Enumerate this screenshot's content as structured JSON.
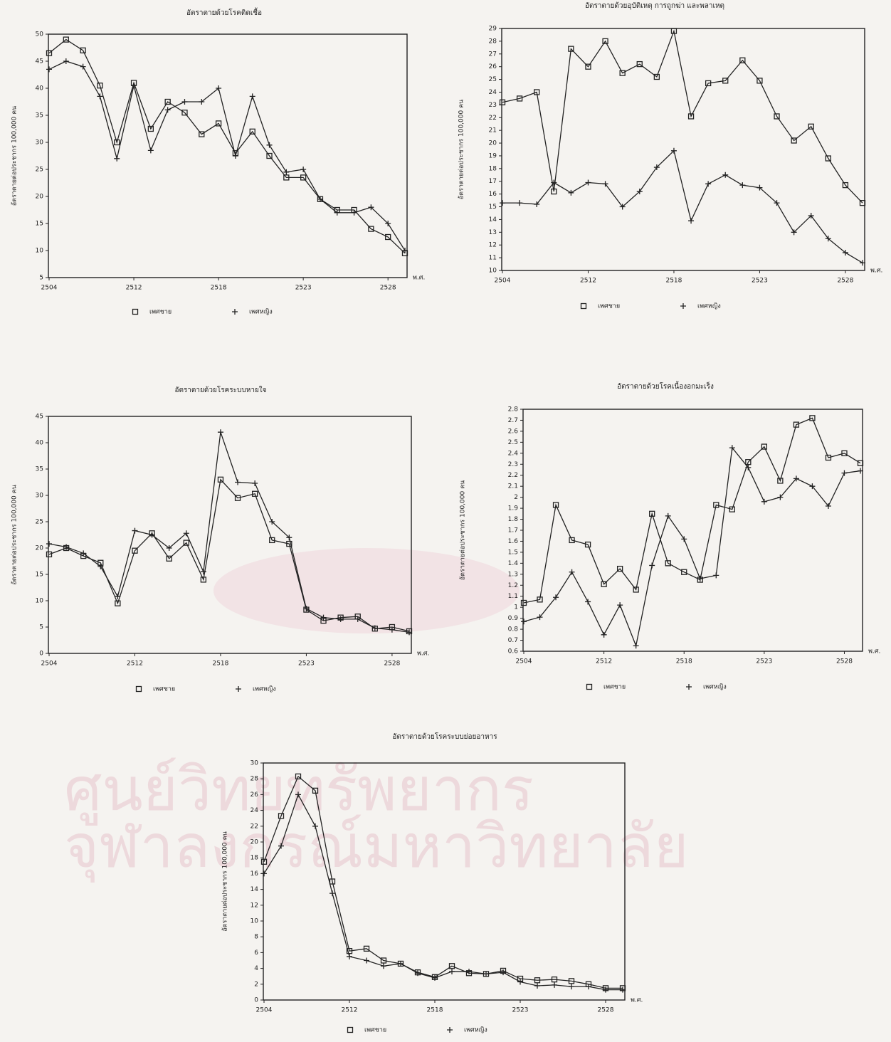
{
  "watermark": [
    "ศูนย์วิทยทรัพยากร",
    "จุฬาลงกรณ์มหาวิทยาลัย"
  ],
  "chart_data": [
    {
      "type": "line",
      "title": "อัตราตายด้วยโรคติดเชื้อ",
      "y_label": "อัตราตายต่อประชากร 100,000 คน",
      "x_label": "พ.ศ.",
      "categories": [
        "2504",
        null,
        null,
        null,
        null,
        "2512",
        null,
        null,
        null,
        null,
        "2518",
        null,
        null,
        null,
        null,
        "2523",
        null,
        null,
        null,
        null,
        "2528",
        null
      ],
      "ylim": [
        5,
        50
      ],
      "yticks": [
        5,
        10,
        15,
        20,
        25,
        30,
        35,
        40,
        45,
        50
      ],
      "series": [
        {
          "name": "เพศชาย",
          "color": "#222222",
          "marker": "square",
          "values": [
            46.5,
            49,
            47,
            40.5,
            30,
            41,
            32.5,
            37.5,
            35.5,
            31.5,
            33.5,
            28,
            32,
            27.5,
            23.5,
            23.5,
            19.5,
            17.5,
            17.5,
            14,
            12.5,
            9.5
          ]
        },
        {
          "name": "เพศหญิง",
          "color": "#222222",
          "marker": "plus",
          "values": [
            43.5,
            45,
            44,
            38.5,
            27,
            40.5,
            28.5,
            36,
            37.5,
            37.5,
            40,
            27.5,
            38.5,
            29.5,
            24.5,
            25,
            19.5,
            17,
            17,
            18,
            15,
            10
          ]
        }
      ]
    },
    {
      "type": "line",
      "title": "อัตราตายด้วยอุบัติเหตุ การถูกฆ่า และพลาเหตุ",
      "y_label": "อัตราตายต่อประชากร 100,000 คน",
      "x_label": "พ.ศ.",
      "categories": [
        "2504",
        null,
        null,
        null,
        null,
        "2512",
        null,
        null,
        null,
        null,
        "2518",
        null,
        null,
        null,
        null,
        "2523",
        null,
        null,
        null,
        null,
        "2528",
        null
      ],
      "ylim": [
        10,
        29
      ],
      "yticks": [
        10,
        11,
        12,
        13,
        14,
        15,
        16,
        17,
        18,
        19,
        20,
        21,
        22,
        23,
        24,
        25,
        26,
        27,
        28,
        29
      ],
      "series": [
        {
          "name": "เพศชาย",
          "color": "#222222",
          "marker": "square",
          "values": [
            23.2,
            23.5,
            24,
            16.2,
            27.4,
            26,
            28,
            25.5,
            26.2,
            25.2,
            28.8,
            22.1,
            24.7,
            24.9,
            26.5,
            24.9,
            22.1,
            20.2,
            21.3,
            18.8,
            16.7,
            15.3
          ]
        },
        {
          "name": "เพศหญิง",
          "color": "#222222",
          "marker": "plus",
          "values": [
            15.3,
            15.3,
            15.2,
            16.9,
            16.1,
            16.9,
            16.8,
            15,
            16.2,
            18.1,
            19.4,
            13.9,
            16.8,
            17.5,
            16.7,
            16.5,
            15.3,
            13,
            14.3,
            12.5,
            11.4,
            10.6
          ]
        }
      ]
    },
    {
      "type": "line",
      "title": "อัตราตายด้วยโรคระบบหายใจ",
      "y_label": "อัตราตายต่อประชากร 100,000 คน",
      "x_label": "พ.ศ.",
      "categories": [
        "2504",
        null,
        null,
        null,
        null,
        "2512",
        null,
        null,
        null,
        null,
        "2518",
        null,
        null,
        null,
        null,
        "2523",
        null,
        null,
        null,
        null,
        "2528",
        null
      ],
      "ylim": [
        0,
        45
      ],
      "yticks": [
        0,
        5,
        10,
        15,
        20,
        25,
        30,
        35,
        40,
        45
      ],
      "series": [
        {
          "name": "เพศชาย",
          "color": "#222222",
          "marker": "square",
          "values": [
            18.8,
            20,
            18.5,
            17.2,
            9.5,
            19.5,
            22.8,
            18,
            21,
            14,
            33,
            29.5,
            30.3,
            21.5,
            20.8,
            8.3,
            6.2,
            6.8,
            7,
            4.7,
            5,
            4.2
          ]
        },
        {
          "name": "เพศหญิง",
          "color": "#222222",
          "marker": "plus",
          "values": [
            20.8,
            20.2,
            19,
            16.5,
            10.8,
            23.3,
            22.5,
            20,
            22.8,
            15.5,
            42,
            32.5,
            32.3,
            25,
            22,
            8.5,
            6.8,
            6.5,
            6.5,
            4.8,
            4.5,
            4
          ]
        }
      ]
    },
    {
      "type": "line",
      "title": "อัตราตายด้วยโรคเนื้องอกมะเร็ง",
      "y_label": "อัตราตายต่อประชากร 100,000 คน",
      "x_label": "พ.ศ.",
      "categories": [
        "2504",
        null,
        null,
        null,
        null,
        "2512",
        null,
        null,
        null,
        null,
        "2518",
        null,
        null,
        null,
        null,
        "2523",
        null,
        null,
        null,
        null,
        "2528",
        null
      ],
      "ylim": [
        0.6,
        2.8
      ],
      "yticks": [
        0.6,
        0.7,
        0.8,
        0.9,
        1,
        1.1,
        1.2,
        1.3,
        1.4,
        1.5,
        1.6,
        1.7,
        1.8,
        1.9,
        2,
        2.1,
        2.2,
        2.3,
        2.4,
        2.5,
        2.6,
        2.7,
        2.8
      ],
      "series": [
        {
          "name": "เพศชาย",
          "color": "#222222",
          "marker": "square",
          "values": [
            1.04,
            1.07,
            1.93,
            1.61,
            1.57,
            1.21,
            1.35,
            1.16,
            1.85,
            1.4,
            1.32,
            1.25,
            1.93,
            1.89,
            2.32,
            2.46,
            2.15,
            2.66,
            2.72,
            2.36,
            2.4,
            2.31
          ]
        },
        {
          "name": "เพศหญิง",
          "color": "#222222",
          "marker": "plus",
          "values": [
            0.87,
            0.91,
            1.09,
            1.32,
            1.05,
            0.75,
            1.02,
            0.65,
            1.38,
            1.83,
            1.62,
            1.26,
            1.29,
            2.45,
            2.27,
            1.96,
            2,
            2.17,
            2.1,
            1.92,
            2.22,
            2.24
          ]
        }
      ]
    },
    {
      "type": "line",
      "title": "อัตราตายด้วยโรคระบบย่อยอาหาร",
      "y_label": "อัตราตายต่อประชากร 100,000 คน",
      "x_label": "พ.ศ.",
      "categories": [
        "2504",
        null,
        null,
        null,
        null,
        "2512",
        null,
        null,
        null,
        null,
        "2518",
        null,
        null,
        null,
        null,
        "2523",
        null,
        null,
        null,
        null,
        "2528",
        null
      ],
      "ylim": [
        0,
        30
      ],
      "yticks": [
        0,
        2,
        4,
        6,
        8,
        10,
        12,
        14,
        16,
        18,
        20,
        22,
        24,
        26,
        28,
        30
      ],
      "series": [
        {
          "name": "เพศชาย",
          "color": "#222222",
          "marker": "square",
          "values": [
            17.5,
            23.3,
            28.3,
            26.5,
            15,
            6.2,
            6.5,
            5,
            4.6,
            3.5,
            2.9,
            4.3,
            3.4,
            3.3,
            3.7,
            2.7,
            2.5,
            2.6,
            2.4,
            2,
            1.5,
            1.5
          ]
        },
        {
          "name": "เพศหญิง",
          "color": "#222222",
          "marker": "plus",
          "values": [
            16,
            19.5,
            26,
            22,
            13.5,
            5.5,
            5,
            4.3,
            4.6,
            3.4,
            2.8,
            3.6,
            3.6,
            3.3,
            3.5,
            2.3,
            1.8,
            1.9,
            1.7,
            1.7,
            1.3,
            1.3
          ]
        }
      ]
    }
  ]
}
